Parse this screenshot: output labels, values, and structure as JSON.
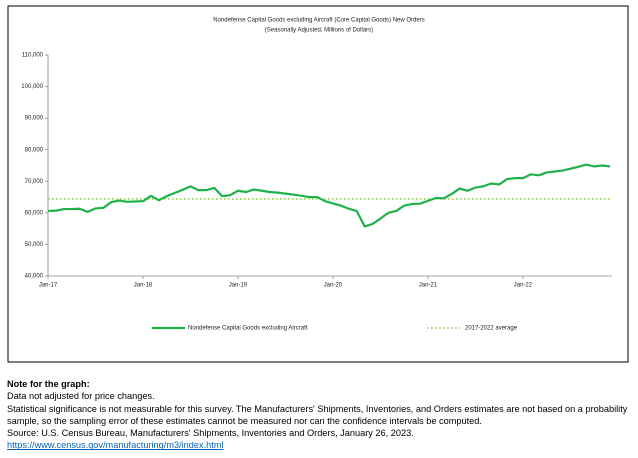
{
  "chart_data": {
    "type": "line",
    "title": "Nondefense Capital Goods excluding Aircraft (Core Capital Goods) New Orders",
    "subtitle": "(Seasonally Adjusted, Millions of Dollars)",
    "categories": [
      "Jan-17",
      null,
      null,
      null,
      null,
      null,
      null,
      null,
      null,
      null,
      null,
      null,
      "Jan-18",
      null,
      null,
      null,
      null,
      null,
      null,
      null,
      null,
      null,
      null,
      null,
      "Jan-19",
      null,
      null,
      null,
      null,
      null,
      null,
      null,
      null,
      null,
      null,
      null,
      "Jan-20",
      null,
      null,
      null,
      null,
      null,
      null,
      null,
      null,
      null,
      null,
      null,
      "Jan-21",
      null,
      null,
      null,
      null,
      null,
      null,
      null,
      null,
      null,
      null,
      null,
      "Jan-22",
      null,
      null,
      null,
      null,
      null,
      null,
      null,
      null,
      null,
      null,
      null
    ],
    "series": [
      {
        "name": "Nondefense Capital Goods excluding Aircraft",
        "color": "#1fb24a",
        "values": [
          60600,
          60700,
          61200,
          61200,
          61300,
          60300,
          61400,
          61600,
          63400,
          63900,
          63500,
          63600,
          63700,
          65400,
          64000,
          65300,
          66300,
          67300,
          68400,
          67200,
          67200,
          67900,
          65300,
          65600,
          67000,
          66600,
          67400,
          67000,
          66600,
          66400,
          66100,
          65800,
          65400,
          65000,
          65000,
          63700,
          63000,
          62300,
          61300,
          60600,
          55700,
          56500,
          58200,
          60000,
          60600,
          62300,
          62800,
          62900,
          63800,
          64700,
          64600,
          66000,
          67700,
          67000,
          68000,
          68400,
          69300,
          69000,
          70700,
          71000,
          71000,
          72200,
          71900,
          72800,
          73100,
          73400,
          74000,
          74600,
          75300,
          74700,
          75000,
          74700
        ]
      }
    ],
    "average_line": {
      "name": "2017-2022 average",
      "value": 64400,
      "color": "#92d050"
    },
    "ylim": [
      40000,
      110000
    ],
    "yticks": [
      {
        "value": 40000,
        "label": "40,000"
      },
      {
        "value": 50000,
        "label": "50,000"
      },
      {
        "value": 60000,
        "label": "60,000"
      },
      {
        "value": 70000,
        "label": "70,000"
      },
      {
        "value": 80000,
        "label": "80,000"
      },
      {
        "value": 90000,
        "label": "90,000"
      },
      {
        "value": 100000,
        "label": "100,000"
      },
      {
        "value": 110000,
        "label": "110,000"
      }
    ],
    "grid": false,
    "legend": "bottom"
  },
  "notes": {
    "heading": "Note for the graph:",
    "lines": [
      "Data not adjusted for price changes.",
      "Statistical significance is not measurable for this survey.  The Manufacturers' Shipments, Inventories, and Orders estimates are not based on a probability sample, so the sampling error of these estimates cannot be measured nor can the confidence intervals be computed.",
      "Source: U.S. Census Bureau, Manufacturers' Shipments, Inventories and Orders, January 26, 2023."
    ],
    "link": "https://www.census.gov/manufacturing/m3/index.html"
  }
}
